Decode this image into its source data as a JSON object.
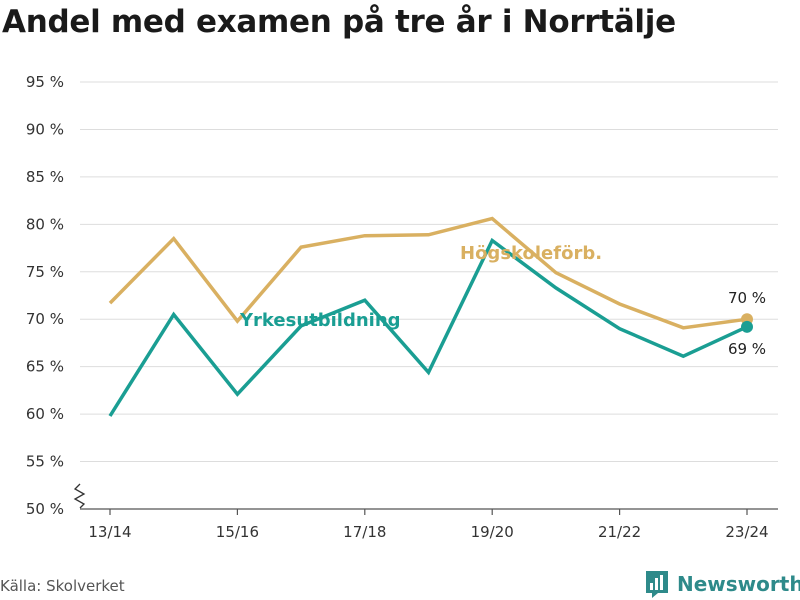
{
  "title": "Andel med examen på tre år i Norrtälje",
  "source": "Källa: Skolverket",
  "brand": {
    "name": "Newsworthy",
    "icon": "bar-chart-logo-icon",
    "color": "#2e8a8a"
  },
  "chart_data": {
    "type": "line",
    "x": [
      "13/14",
      "14/15",
      "15/16",
      "16/17",
      "17/18",
      "18/19",
      "19/20",
      "20/21",
      "21/22",
      "22/23",
      "23/24"
    ],
    "x_tick_labels": [
      "13/14",
      "15/16",
      "17/18",
      "19/20",
      "21/22",
      "23/24"
    ],
    "ylim": [
      50,
      95
    ],
    "y_ticks": [
      50,
      55,
      60,
      65,
      70,
      75,
      80,
      85,
      90,
      95
    ],
    "y_tick_labels": [
      "50 %",
      "55 %",
      "60 %",
      "65 %",
      "70 %",
      "75 %",
      "80 %",
      "85 %",
      "90 %",
      "95 %"
    ],
    "y_axis_break": true,
    "grid": true,
    "series": [
      {
        "name": "Högskoleförb.",
        "color": "#d9b061",
        "values": [
          71.7,
          78.5,
          69.8,
          77.6,
          78.8,
          78.9,
          80.6,
          74.9,
          71.6,
          69.1,
          70.0
        ],
        "end_label": "70 %"
      },
      {
        "name": "Yrkesutbildning",
        "color": "#1a9e93",
        "values": [
          59.8,
          70.5,
          62.1,
          69.3,
          72.0,
          64.4,
          78.3,
          73.3,
          69.0,
          66.1,
          69.2
        ],
        "end_label": "69 %"
      }
    ]
  }
}
